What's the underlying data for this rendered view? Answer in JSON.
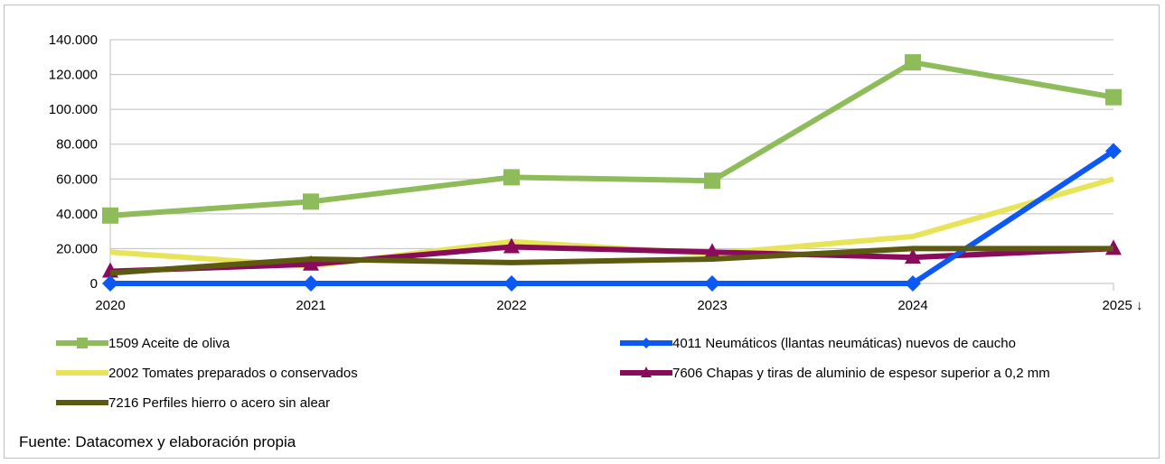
{
  "source": "Fuente: Datacomex y elaboración propia",
  "chart_data": {
    "type": "line",
    "x": [
      "2020",
      "2021",
      "2022",
      "2023",
      "2024",
      "2025 ↓"
    ],
    "ylim": [
      0,
      140000
    ],
    "yticks": [
      0,
      20000,
      40000,
      60000,
      80000,
      100000,
      120000,
      140000
    ],
    "ytick_labels": [
      "0",
      "20.000",
      "40.000",
      "60.000",
      "80.000",
      "100.000",
      "120.000",
      "140.000"
    ],
    "grid": "horizontal",
    "legend_position": "bottom",
    "series": [
      {
        "name": "1509 Aceite de oliva",
        "color": "#8fbc5a",
        "marker": "square",
        "values": [
          39000,
          47000,
          61000,
          59000,
          127000,
          107000
        ]
      },
      {
        "name": "4011 Neumáticos (llantas neumáticas) nuevos de caucho",
        "color": "#0b59f2",
        "marker": "diamond",
        "values": [
          0,
          0,
          0,
          0,
          0,
          76000
        ]
      },
      {
        "name": "2002 Tomates preparados o conservados",
        "color": "#e8e45a",
        "marker": "none",
        "values": [
          18000,
          10000,
          24000,
          17000,
          27000,
          60000
        ]
      },
      {
        "name": "7606 Chapas y tiras de aluminio de espesor superior a 0,2 mm",
        "color": "#8a0a5c",
        "marker": "triangle",
        "values": [
          7000,
          11000,
          21000,
          18000,
          15000,
          20000
        ]
      },
      {
        "name": "7216 Perfiles hierro o acero sin alear",
        "color": "#5c5a10",
        "marker": "none",
        "values": [
          6000,
          14000,
          12000,
          14000,
          20000,
          20000
        ]
      }
    ]
  }
}
